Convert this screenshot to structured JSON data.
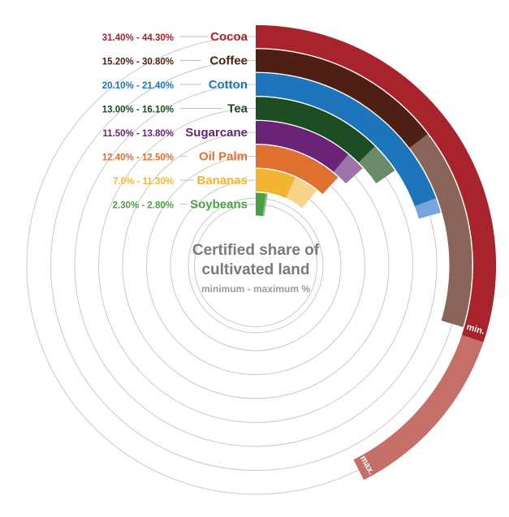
{
  "chart_data": {
    "type": "radial-bar",
    "title_line1": "Certified share of",
    "title_line2": "cultivated land",
    "subtitle": "minimum - maximum %",
    "min_label": "min.",
    "max_label": "max.",
    "series": [
      {
        "name": "Cocoa",
        "range_label": "31.40% - 44.30%",
        "min": 31.4,
        "max": 44.3,
        "color": "#a8232c",
        "light": "#c47068"
      },
      {
        "name": "Coffee",
        "range_label": "15.20% - 30.80%",
        "min": 15.2,
        "max": 30.8,
        "color": "#4e1f13",
        "light": "#8a6458"
      },
      {
        "name": "Cotton",
        "range_label": "20.10% - 21.40%",
        "min": 20.1,
        "max": 21.4,
        "color": "#1d75bb",
        "light": "#7aa5dc"
      },
      {
        "name": "Tea",
        "range_label": "13.00% - 16.10%",
        "min": 13.0,
        "max": 16.1,
        "color": "#1c4d23",
        "light": "#6b8a6a"
      },
      {
        "name": "Sugarcane",
        "range_label": "11.50% - 13.80%",
        "min": 11.5,
        "max": 13.8,
        "color": "#6a2377",
        "light": "#9d74a8"
      },
      {
        "name": "Oil Palm",
        "range_label": "12.40% - 12.50%",
        "min": 12.4,
        "max": 12.5,
        "color": "#e07030",
        "light": "#eea877"
      },
      {
        "name": "Bananas",
        "range_label": "7.0% - 11.30%",
        "min": 7.0,
        "max": 11.3,
        "color": "#f2b531",
        "light": "#f8d389"
      },
      {
        "name": "Soybeans",
        "range_label": "2.30% - 2.80%",
        "min": 2.3,
        "max": 2.8,
        "color": "#4d9e45",
        "light": "#8cc487"
      }
    ]
  }
}
